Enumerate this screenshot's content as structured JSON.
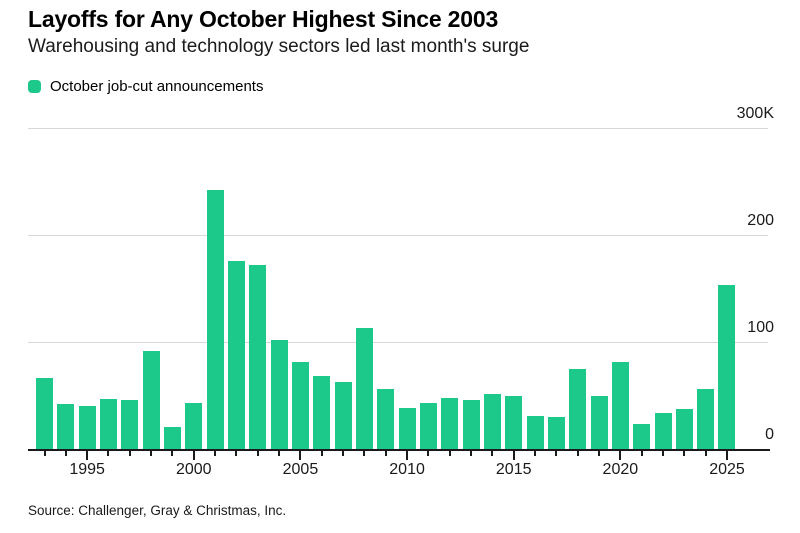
{
  "header": {
    "title": "Layoffs for Any October Highest Since 2003",
    "subtitle": "Warehousing and technology sectors led last month's surge"
  },
  "legend": {
    "label": "October job-cut announcements"
  },
  "source": "Source: Challenger, Gray & Christmas, Inc.",
  "colors": {
    "bar": "#1dc88b",
    "grid": "#d8d8d8",
    "axis": "#1a1a1a",
    "background": "#ffffff",
    "text": "#000000"
  },
  "chart_data": {
    "type": "bar",
    "title": "Layoffs for Any October Highest Since 2003",
    "subtitle": "Warehousing and technology sectors led last month's surge",
    "series_name": "October job-cut announcements",
    "unit": "thousands of job cuts",
    "x": [
      1993,
      1994,
      1995,
      1996,
      1997,
      1998,
      1999,
      2000,
      2001,
      2002,
      2003,
      2004,
      2005,
      2006,
      2007,
      2008,
      2009,
      2010,
      2011,
      2012,
      2013,
      2014,
      2015,
      2016,
      2017,
      2018,
      2019,
      2020,
      2021,
      2022,
      2023,
      2024,
      2025
    ],
    "values": [
      66,
      42,
      40,
      47,
      46,
      92,
      21,
      43,
      242,
      176,
      172,
      102,
      81,
      68,
      63,
      113,
      56,
      38,
      43,
      48,
      46,
      51,
      50,
      31,
      30,
      75,
      50,
      81,
      23,
      34,
      37,
      56,
      153
    ],
    "ylim": [
      0,
      300
    ],
    "y_ticks": [
      {
        "label": "300K",
        "value": 300
      },
      {
        "label": "200",
        "value": 200
      },
      {
        "label": "100",
        "value": 100
      },
      {
        "label": "0",
        "value": 0
      }
    ],
    "x_tick_labels": [
      "1995",
      "2000",
      "2005",
      "2010",
      "2015",
      "2020",
      "2025"
    ],
    "grid": "horizontal",
    "legend_position": "top-left",
    "yaxis_side": "right"
  }
}
